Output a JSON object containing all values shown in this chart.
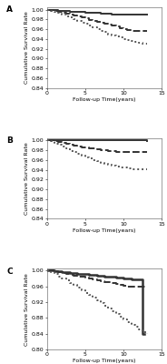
{
  "panels": [
    {
      "label": "A",
      "ylabel": "Cumulative Survival Rate",
      "xlabel": "Follow-up Time(years)",
      "xlim": [
        0,
        15
      ],
      "ylim": [
        0.84,
        1.005
      ],
      "yticks": [
        0.84,
        0.86,
        0.88,
        0.9,
        0.92,
        0.94,
        0.96,
        0.98,
        1.0
      ],
      "ytick_labels": [
        "0.84",
        "0.86",
        "0.88",
        "0.90",
        "0.92",
        "0.94",
        "0.96",
        "0.98",
        "1.00"
      ],
      "curves": [
        {
          "x": [
            0,
            0.5,
            1,
            1.5,
            2,
            2.5,
            3,
            3.5,
            4,
            4.5,
            5,
            5.5,
            6,
            6.5,
            7,
            7.5,
            8,
            8.5,
            9,
            9.5,
            10,
            10.5,
            11,
            11.5,
            12,
            12.5,
            13
          ],
          "y": [
            1.0,
            1.0,
            0.999,
            0.998,
            0.997,
            0.997,
            0.996,
            0.996,
            0.995,
            0.995,
            0.994,
            0.994,
            0.993,
            0.993,
            0.992,
            0.992,
            0.992,
            0.991,
            0.991,
            0.991,
            0.991,
            0.991,
            0.991,
            0.991,
            0.991,
            0.991,
            0.991
          ],
          "linestyle": "solid",
          "color": "#333333",
          "linewidth": 1.4
        },
        {
          "x": [
            0,
            0.5,
            1,
            1.5,
            2,
            2.5,
            3,
            3.5,
            4,
            4.5,
            5,
            5.5,
            6,
            6.5,
            7,
            7.5,
            8,
            8.5,
            9,
            9.5,
            10,
            10.5,
            11,
            11.5,
            12,
            12.5,
            13
          ],
          "y": [
            1.0,
            1.0,
            0.998,
            0.996,
            0.994,
            0.992,
            0.99,
            0.988,
            0.986,
            0.984,
            0.982,
            0.979,
            0.977,
            0.975,
            0.973,
            0.971,
            0.969,
            0.967,
            0.965,
            0.963,
            0.961,
            0.959,
            0.957,
            0.957,
            0.957,
            0.957,
            0.957
          ],
          "linestyle": "dashed",
          "color": "#333333",
          "linewidth": 1.4
        },
        {
          "x": [
            0,
            0.5,
            1,
            1.5,
            2,
            2.5,
            3,
            3.5,
            4,
            4.5,
            5,
            5.5,
            6,
            6.5,
            7,
            7.5,
            8,
            8.5,
            9,
            9.5,
            10,
            10.5,
            11,
            11.5,
            12,
            12.5,
            13
          ],
          "y": [
            1.0,
            0.998,
            0.996,
            0.993,
            0.99,
            0.987,
            0.984,
            0.98,
            0.977,
            0.974,
            0.971,
            0.967,
            0.964,
            0.961,
            0.957,
            0.954,
            0.95,
            0.948,
            0.945,
            0.943,
            0.94,
            0.938,
            0.936,
            0.935,
            0.933,
            0.931,
            0.93
          ],
          "linestyle": "dotted",
          "color": "#555555",
          "linewidth": 1.4
        }
      ]
    },
    {
      "label": "B",
      "ylabel": "Cumulative Survival Rate",
      "xlabel": "Follow-up Time(years)",
      "xlim": [
        0,
        15
      ],
      "ylim": [
        0.84,
        1.005
      ],
      "yticks": [
        0.84,
        0.86,
        0.88,
        0.9,
        0.92,
        0.94,
        0.96,
        0.98,
        1.0
      ],
      "ytick_labels": [
        "0.84",
        "0.86",
        "0.88",
        "0.90",
        "0.92",
        "0.94",
        "0.96",
        "0.98",
        "1.00"
      ],
      "curves": [
        {
          "x": [
            0,
            1,
            2,
            3,
            4,
            5,
            6,
            7,
            8,
            9,
            10,
            11,
            12,
            13
          ],
          "y": [
            1.0,
            1.0,
            1.0,
            1.0,
            1.0,
            1.0,
            1.0,
            1.0,
            1.0,
            1.0,
            1.0,
            1.0,
            1.0,
            0.999
          ],
          "linestyle": "solid",
          "color": "#333333",
          "linewidth": 1.4
        },
        {
          "x": [
            0,
            0.5,
            1,
            1.5,
            2,
            2.5,
            3,
            3.5,
            4,
            4.5,
            5,
            5.5,
            6,
            6.5,
            7,
            7.5,
            8,
            8.5,
            9,
            9.5,
            10,
            10.5,
            11,
            11.5,
            12,
            12.5,
            13
          ],
          "y": [
            1.0,
            1.0,
            0.998,
            0.997,
            0.995,
            0.993,
            0.991,
            0.99,
            0.988,
            0.986,
            0.985,
            0.984,
            0.983,
            0.982,
            0.981,
            0.98,
            0.979,
            0.978,
            0.977,
            0.977,
            0.976,
            0.976,
            0.976,
            0.976,
            0.976,
            0.976,
            0.976
          ],
          "linestyle": "dashed",
          "color": "#333333",
          "linewidth": 1.4
        },
        {
          "x": [
            0,
            0.5,
            1,
            1.5,
            2,
            2.5,
            3,
            3.5,
            4,
            4.5,
            5,
            5.5,
            6,
            6.5,
            7,
            7.5,
            8,
            8.5,
            9,
            9.5,
            10,
            10.5,
            11,
            11.5,
            12,
            12.5,
            13
          ],
          "y": [
            1.0,
            0.998,
            0.994,
            0.991,
            0.987,
            0.983,
            0.979,
            0.976,
            0.972,
            0.969,
            0.966,
            0.963,
            0.96,
            0.957,
            0.954,
            0.952,
            0.95,
            0.948,
            0.946,
            0.945,
            0.944,
            0.943,
            0.942,
            0.942,
            0.942,
            0.942,
            0.942
          ],
          "linestyle": "dotted",
          "color": "#555555",
          "linewidth": 1.4
        }
      ]
    },
    {
      "label": "C",
      "ylabel": "Cumulative Survival Rate",
      "xlabel": "Follow-up Time(years)",
      "xlim": [
        0,
        15
      ],
      "ylim": [
        0.8,
        1.005
      ],
      "yticks": [
        0.8,
        0.84,
        0.88,
        0.92,
        0.96,
        1.0
      ],
      "ytick_labels": [
        "0.80",
        "0.84",
        "0.88",
        "0.92",
        "0.96",
        "1.00"
      ],
      "curves": [
        {
          "x": [
            0,
            0.5,
            1,
            1.5,
            2,
            2.5,
            3,
            3.5,
            4,
            4.5,
            5,
            5.5,
            6,
            6.5,
            7,
            7.5,
            8,
            8.5,
            9,
            9.5,
            10,
            10.5,
            11,
            11.5,
            12,
            12.5,
            12.7
          ],
          "y": [
            1.0,
            1.0,
            0.999,
            0.998,
            0.997,
            0.996,
            0.995,
            0.994,
            0.993,
            0.992,
            0.991,
            0.99,
            0.989,
            0.988,
            0.987,
            0.986,
            0.985,
            0.984,
            0.983,
            0.982,
            0.981,
            0.98,
            0.979,
            0.979,
            0.978,
            0.84,
            0.84
          ],
          "linestyle": "solid",
          "color": "#333333",
          "linewidth": 1.8
        },
        {
          "x": [
            0,
            0.5,
            1,
            1.5,
            2,
            2.5,
            3,
            3.5,
            4,
            4.5,
            5,
            5.5,
            6,
            6.5,
            7,
            7.5,
            8,
            8.5,
            9,
            9.5,
            10,
            10.5,
            11,
            11.5,
            12,
            12.5,
            13
          ],
          "y": [
            1.0,
            1.0,
            0.998,
            0.996,
            0.994,
            0.992,
            0.99,
            0.988,
            0.986,
            0.984,
            0.982,
            0.98,
            0.978,
            0.976,
            0.974,
            0.972,
            0.97,
            0.968,
            0.966,
            0.964,
            0.962,
            0.96,
            0.959,
            0.959,
            0.959,
            0.959,
            0.959
          ],
          "linestyle": "dashed",
          "color": "#333333",
          "linewidth": 1.4
        },
        {
          "x": [
            0,
            0.5,
            1,
            1.5,
            2,
            2.5,
            3,
            3.5,
            4,
            4.5,
            5,
            5.5,
            6,
            6.5,
            7,
            7.5,
            8,
            8.5,
            9,
            9.5,
            10,
            10.5,
            11,
            11.5,
            12,
            12.5,
            13
          ],
          "y": [
            1.0,
            0.996,
            0.991,
            0.986,
            0.981,
            0.975,
            0.969,
            0.963,
            0.957,
            0.951,
            0.944,
            0.938,
            0.931,
            0.924,
            0.918,
            0.911,
            0.904,
            0.897,
            0.89,
            0.883,
            0.876,
            0.869,
            0.863,
            0.857,
            0.851,
            0.845,
            0.84
          ],
          "linestyle": "dotted",
          "color": "#555555",
          "linewidth": 1.4
        }
      ]
    }
  ],
  "bg_color": "#ffffff",
  "tick_fontsize": 4.5,
  "label_fontsize": 4.5,
  "panel_label_fontsize": 6.5
}
